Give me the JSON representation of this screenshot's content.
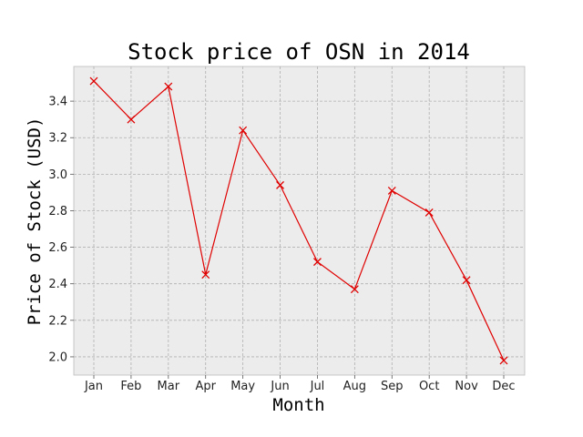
{
  "chart_data": {
    "type": "line",
    "title": "Stock price of OSN in 2014",
    "xlabel": "Month",
    "ylabel": "Price of Stock (USD)",
    "categories": [
      "Jan",
      "Feb",
      "Mar",
      "Apr",
      "May",
      "Jun",
      "Jul",
      "Aug",
      "Sep",
      "Oct",
      "Nov",
      "Dec"
    ],
    "series": [
      {
        "values": [
          3.51,
          3.3,
          3.48,
          2.45,
          3.24,
          2.94,
          2.52,
          2.37,
          2.91,
          2.79,
          2.42,
          1.98
        ],
        "color": "#e00000",
        "marker": "x"
      }
    ],
    "ylim": [
      1.9,
      3.59
    ],
    "yticks": [
      2.0,
      2.2,
      2.4,
      2.6,
      2.8,
      3.0,
      3.2,
      3.4
    ],
    "grid": true,
    "background": "#ececec"
  }
}
